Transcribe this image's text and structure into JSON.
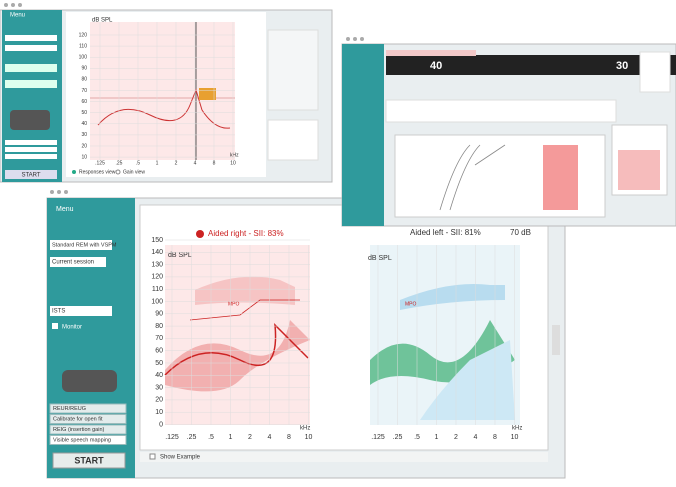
{
  "window1": {
    "menu": "Menu",
    "y_label": "dB SPL",
    "y_ticks": [
      "120",
      "110",
      "100",
      "90",
      "80",
      "70",
      "60",
      "50",
      "40",
      "30",
      "20",
      "10"
    ],
    "x_ticks": [
      ".125",
      ".25",
      ".5",
      "1",
      "2",
      "4",
      "8",
      "10"
    ],
    "x_unit": "kHz",
    "tabs": [
      "Responses view",
      "Gain view"
    ],
    "start": "START"
  },
  "window2": {
    "left_level": "40",
    "right_level": "30"
  },
  "window3": {
    "menu": "Menu",
    "protocol": "Standard REM with VSPM",
    "session": "Current session",
    "signal": "ISTS",
    "monitor": "Monitor",
    "steps": [
      "REUR/REUG",
      "Calibrate for open fit",
      "REIG (insertion gain)",
      "Visible speech mapping"
    ],
    "start": "START",
    "right_title": "Aided right - SII: 83%",
    "left_title": "Aided left - SII: 81%",
    "level": "70 dB",
    "y_label": "dB SPL",
    "y_ticks": [
      "150",
      "140",
      "130",
      "120",
      "110",
      "100",
      "90",
      "80",
      "70",
      "60",
      "50",
      "40",
      "30",
      "20",
      "10",
      "0"
    ],
    "x_ticks": [
      ".125",
      ".25",
      ".5",
      "1",
      "2",
      "4",
      "8",
      "10"
    ],
    "x_unit": "kHz",
    "show_example": "Show Example"
  }
}
